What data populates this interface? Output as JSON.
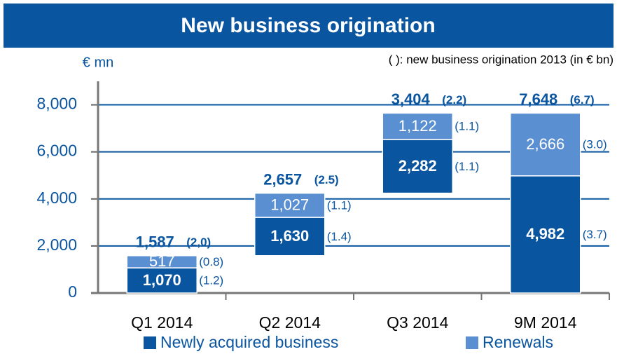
{
  "chart_data": {
    "type": "waterfall",
    "title": "New business origination",
    "y_label": "€ mn",
    "note": "( ): new business origination 2013 (in € bn)",
    "categories": [
      "Q1 2014",
      "Q2 2014",
      "Q3 2014",
      "9M 2014"
    ],
    "series": [
      {
        "name": "Newly acquired business",
        "color": "#0a55a0",
        "values": [
          1070,
          1630,
          2282,
          4982
        ],
        "value_labels": [
          "1,070",
          "1,630",
          "2,282",
          "4,982"
        ],
        "prior_labels": [
          "(1.2)",
          "(1.4)",
          "(1.1)",
          "(3.7)"
        ]
      },
      {
        "name": "Renewals",
        "color": "#5a8fd2",
        "values": [
          517,
          1027,
          1122,
          2666
        ],
        "value_labels": [
          "517",
          "1,027",
          "1,122",
          "2,666"
        ],
        "prior_labels": [
          "(0.8)",
          "(1.1)",
          "(1.1)",
          "(3.0)"
        ]
      }
    ],
    "totals": [
      1587,
      2657,
      3404,
      7648
    ],
    "total_labels": [
      "1,587",
      "2,657",
      "3,404",
      "7,648"
    ],
    "total_prior_labels": [
      "(2,0)",
      "(2.5)",
      "(2.2)",
      "(6.7)"
    ],
    "ylim": [
      0,
      9000
    ],
    "yticks": [
      0,
      {
        "value": 2000,
        "label": "2,000"
      },
      {
        "value": 4000,
        "label": "4,000"
      },
      {
        "value": 6000,
        "label": "6,000"
      },
      {
        "value": 8000,
        "label": "8,000"
      }
    ],
    "grid": true
  }
}
